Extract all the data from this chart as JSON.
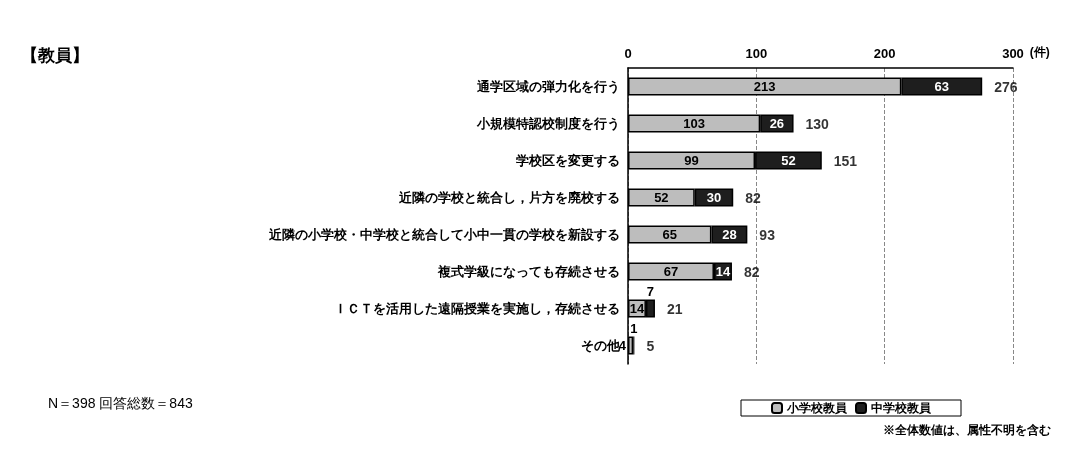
{
  "chart_data": {
    "type": "bar",
    "orientation": "horizontal",
    "stacked": true,
    "title": "【教員】",
    "xlabel": "(件)",
    "categories": [
      "通学区域の弾力化を行う",
      "小規模特認校制度を行う",
      "学校区を変更する",
      "近隣の学校と統合し，片方を廃校する",
      "近隣の小学校・中学校と統合して小中一貫の学校を新設する",
      "複式学級になっても存続させる",
      "ＩＣＴを活用した遠隔授業を実施し，存続させる",
      "その他"
    ],
    "series": [
      {
        "name": "小学校教員",
        "color": "#bdbdbd",
        "values": [
          213,
          103,
          99,
          52,
          65,
          67,
          14,
          4
        ]
      },
      {
        "name": "中学校教員",
        "color": "#1e1e1e",
        "values": [
          63,
          26,
          52,
          30,
          28,
          14,
          7,
          1
        ]
      }
    ],
    "totals": [
      "276",
      "130",
      "151",
      "82",
      "93",
      "82",
      "21",
      "5"
    ],
    "data_labels": true,
    "xlim": [
      0,
      300
    ],
    "xticks": [
      0,
      100,
      200,
      300
    ],
    "grid": "x",
    "legend": "bottom right",
    "annotations": [
      "N＝398 回答総数＝843",
      "※全体数値は、属性不明を含む"
    ]
  }
}
